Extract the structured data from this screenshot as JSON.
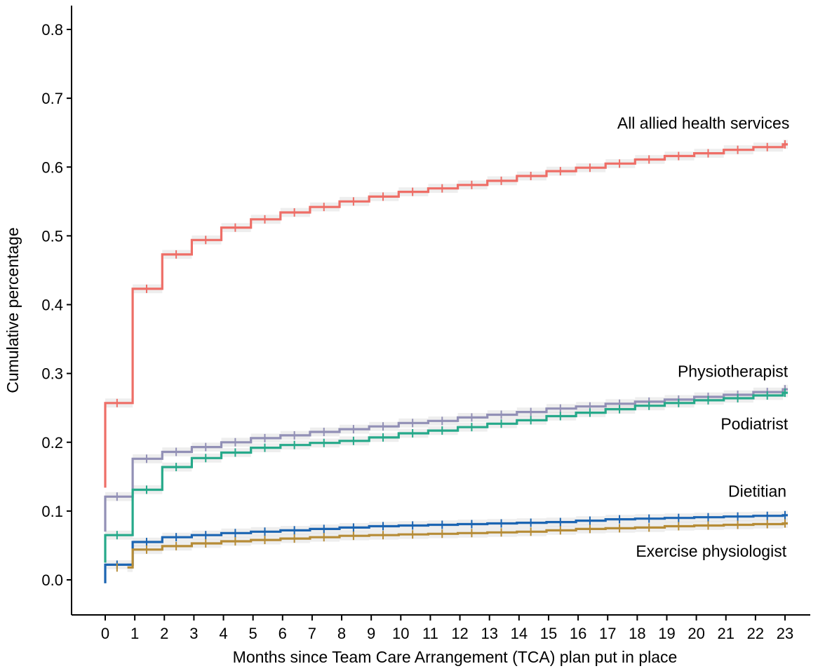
{
  "chart_data": {
    "type": "line",
    "step": true,
    "title": "",
    "xlabel": "Months since Team Care Arrangement (TCA) plan put in place",
    "ylabel": "Cumulative percentage",
    "xlim": [
      -0.6,
      23.6
    ],
    "ylim": [
      -0.05,
      0.84
    ],
    "x_ticks": [
      0,
      1,
      2,
      3,
      4,
      5,
      6,
      7,
      8,
      9,
      10,
      11,
      12,
      13,
      14,
      15,
      16,
      17,
      18,
      19,
      20,
      21,
      22,
      23
    ],
    "x_tick_labels": [
      "0",
      "1",
      "2",
      "3",
      "4",
      "5",
      "6",
      "7",
      "8",
      "9",
      "10",
      "11",
      "12",
      "13",
      "14",
      "15",
      "16",
      "17",
      "18",
      "19",
      "20",
      "21",
      "22",
      "23"
    ],
    "y_ticks": [
      0.0,
      0.1,
      0.2,
      0.3,
      0.4,
      0.5,
      0.6,
      0.7,
      0.8
    ],
    "y_tick_labels": [
      "0.0",
      "0.1",
      "0.2",
      "0.3",
      "0.4",
      "0.5",
      "0.6",
      "0.7",
      "0.8"
    ],
    "grid": false,
    "confidence_band": true,
    "x": [
      0,
      1,
      2,
      3,
      4,
      5,
      6,
      7,
      8,
      9,
      10,
      11,
      12,
      13,
      14,
      15,
      16,
      17,
      18,
      19,
      20,
      21,
      22,
      23
    ],
    "series": [
      {
        "name": "All allied health services",
        "color": "#ee6e67",
        "start": 0.134,
        "values": [
          0.257,
          0.423,
          0.473,
          0.494,
          0.512,
          0.524,
          0.534,
          0.542,
          0.55,
          0.557,
          0.564,
          0.569,
          0.574,
          0.58,
          0.587,
          0.594,
          0.599,
          0.605,
          0.611,
          0.616,
          0.62,
          0.625,
          0.629,
          0.633
        ]
      },
      {
        "name": "Physiotherapist",
        "color": "#9290b6",
        "start": 0.07,
        "values": [
          0.121,
          0.176,
          0.186,
          0.193,
          0.2,
          0.206,
          0.21,
          0.215,
          0.219,
          0.223,
          0.228,
          0.231,
          0.236,
          0.24,
          0.244,
          0.249,
          0.252,
          0.256,
          0.259,
          0.262,
          0.266,
          0.269,
          0.273,
          0.277
        ]
      },
      {
        "name": "Podiatrist",
        "color": "#26a98a",
        "start": 0.025,
        "values": [
          0.065,
          0.131,
          0.164,
          0.177,
          0.185,
          0.192,
          0.196,
          0.199,
          0.202,
          0.207,
          0.213,
          0.217,
          0.222,
          0.227,
          0.232,
          0.238,
          0.243,
          0.248,
          0.253,
          0.257,
          0.261,
          0.264,
          0.268,
          0.272
        ]
      },
      {
        "name": "Dietitian",
        "color": "#1c65b2",
        "start": -0.005,
        "values": [
          0.022,
          0.055,
          0.062,
          0.065,
          0.068,
          0.07,
          0.072,
          0.074,
          0.076,
          0.078,
          0.079,
          0.08,
          0.081,
          0.082,
          0.083,
          0.084,
          0.086,
          0.088,
          0.089,
          0.09,
          0.091,
          0.092,
          0.093,
          0.094
        ]
      },
      {
        "name": "Exercise physiologist",
        "color": "#b68c37",
        "start": 0.018,
        "start_x": 0.75,
        "values": [
          0.018,
          0.044,
          0.049,
          0.053,
          0.056,
          0.058,
          0.06,
          0.062,
          0.064,
          0.065,
          0.066,
          0.067,
          0.068,
          0.069,
          0.07,
          0.072,
          0.074,
          0.075,
          0.076,
          0.078,
          0.079,
          0.08,
          0.081,
          0.082
        ]
      }
    ],
    "annotations": [
      {
        "text": "All allied health services",
        "series": "All allied health services",
        "x": 23.15,
        "y": 0.664
      },
      {
        "text": "Physiotherapist",
        "series": "Physiotherapist",
        "x": 23.1,
        "y": 0.303
      },
      {
        "text": "Podiatrist",
        "series": "Podiatrist",
        "x": 23.1,
        "y": 0.227
      },
      {
        "text": "Dietitian",
        "series": "Dietitian",
        "x": 23.05,
        "y": 0.129
      },
      {
        "text": "Exercise physiologist",
        "series": "Exercise physiologist",
        "x": 23.05,
        "y": 0.042
      }
    ]
  }
}
